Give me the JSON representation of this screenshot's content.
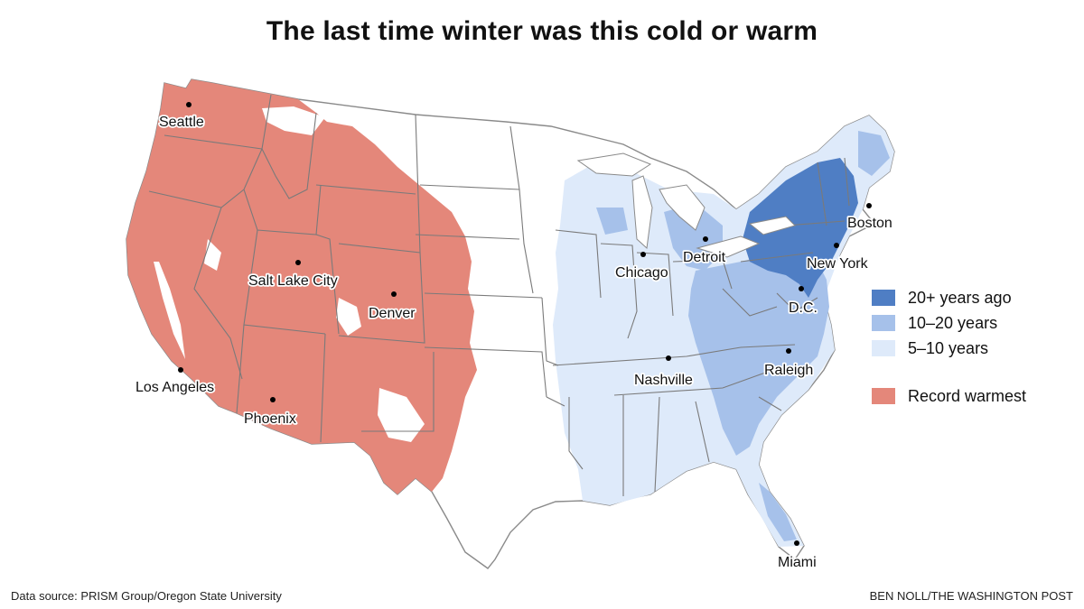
{
  "title": "The last time winter was this cold or warm",
  "legend": [
    {
      "label": "20+ years ago",
      "color": "#4f7ec4"
    },
    {
      "label": "10–20 years",
      "color": "#a6c1ea"
    },
    {
      "label": "5–10 years",
      "color": "#deeafa"
    },
    {
      "label": "Record warmest",
      "color": "#e4877a"
    }
  ],
  "cities": [
    {
      "name": "Seattle"
    },
    {
      "name": "Salt Lake City"
    },
    {
      "name": "Denver"
    },
    {
      "name": "Los Angeles"
    },
    {
      "name": "Phoenix"
    },
    {
      "name": "Chicago"
    },
    {
      "name": "Detroit"
    },
    {
      "name": "Nashville"
    },
    {
      "name": "Boston"
    },
    {
      "name": "New York"
    },
    {
      "name": "D.C."
    },
    {
      "name": "Raleigh"
    },
    {
      "name": "Miami"
    }
  ],
  "footer": {
    "source": "Data source: PRISM Group/Oregon State University",
    "credit": "BEN NOLL/THE WASHINGTON POST"
  }
}
